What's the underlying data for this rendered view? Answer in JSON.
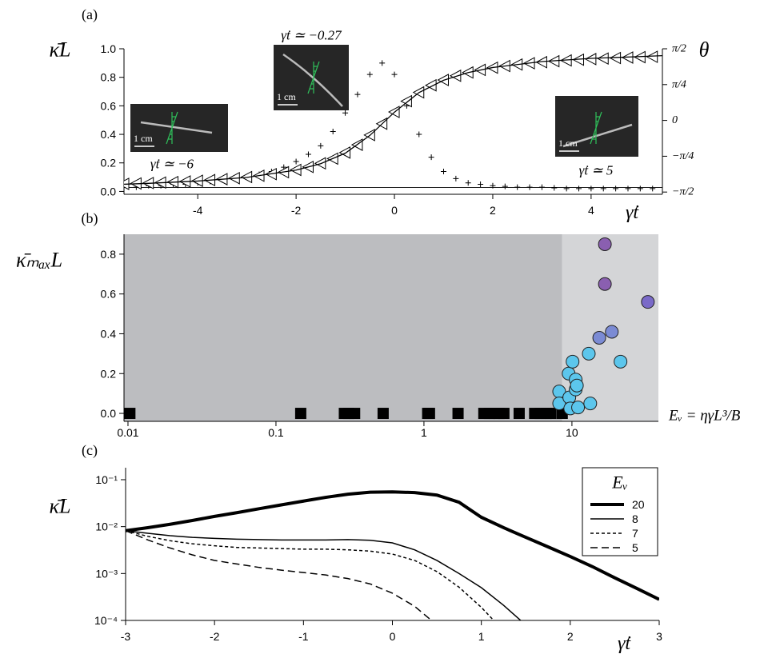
{
  "chart_data": [
    {
      "type": "scatter",
      "panel_label": "(a)",
      "ylabel": "κ̄L",
      "y2label": "θ",
      "xlabel": "γ̇t",
      "baseline": true,
      "xlim": [
        -5.5,
        5.45
      ],
      "xticks": [
        -4,
        -2,
        0,
        2,
        4
      ],
      "ylim": [
        -0.02,
        1.0
      ],
      "yticks": [
        {
          "value": 0,
          "label": "0.0"
        },
        0.2,
        0.4,
        0.6,
        0.8,
        {
          "value": 1,
          "label": "1.0"
        }
      ],
      "y2lim": [
        -1.62,
        1.5708
      ],
      "y2ticks": [
        {
          "value": -1.5708,
          "label": "−π/2"
        },
        {
          "value": -0.7854,
          "label": "−π/4"
        },
        0,
        {
          "value": 0.7854,
          "label": "π/4"
        },
        {
          "value": 1.5708,
          "label": "π/2"
        }
      ],
      "x": [
        -5.5,
        -5.25,
        -5,
        -4.75,
        -4.5,
        -4.25,
        -4,
        -3.75,
        -3.5,
        -3.25,
        -3,
        -2.75,
        -2.5,
        -2.25,
        -2,
        -1.75,
        -1.5,
        -1.25,
        -1,
        -0.75,
        -0.5,
        -0.25,
        0,
        0.25,
        0.5,
        0.75,
        1,
        1.25,
        1.5,
        1.75,
        2,
        2.25,
        2.5,
        2.75,
        3,
        3.25,
        3.5,
        3.75,
        4,
        4.25,
        4.5,
        4.75,
        5,
        5.25
      ],
      "series": [
        {
          "marker": "plus",
          "color": "#000000",
          "values": [
            0.03,
            0.03,
            0.04,
            0.04,
            0.05,
            0.05,
            0.06,
            0.07,
            0.08,
            0.09,
            0.1,
            0.12,
            0.14,
            0.17,
            0.21,
            0.26,
            0.32,
            0.42,
            0.55,
            0.68,
            0.82,
            0.9,
            0.82,
            0.6,
            0.4,
            0.24,
            0.14,
            0.09,
            0.06,
            0.05,
            0.04,
            0.035,
            0.03,
            0.03,
            0.03,
            0.025,
            0.02,
            0.02,
            0.02,
            0.02,
            0.02,
            0.02,
            0.02,
            0.02
          ]
        },
        {
          "marker": "triangle",
          "color": "#000000",
          "axis": "y2",
          "values": [
            -1.392,
            -1.383,
            -1.374,
            -1.363,
            -1.352,
            -1.339,
            -1.324,
            -1.308,
            -1.289,
            -1.267,
            -1.242,
            -1.213,
            -1.178,
            -1.136,
            -1.085,
            -1.021,
            -0.941,
            -0.839,
            -0.706,
            -0.535,
            -0.321,
            -0.073,
            0.185,
            0.421,
            0.615,
            0.769,
            0.887,
            0.979,
            1.051,
            1.108,
            1.155,
            1.193,
            1.226,
            1.254,
            1.277,
            1.298,
            1.315,
            1.331,
            1.345,
            1.357,
            1.368,
            1.378,
            1.387,
            1.395
          ]
        },
        {
          "marker": "none",
          "line": true,
          "color": "#000000",
          "axis": "y2",
          "x": [
            -5.5,
            -5,
            -4,
            -3,
            -2,
            -1.5,
            -1,
            -0.5,
            0,
            0.5,
            1,
            1.5,
            2,
            3,
            4,
            5,
            5.45
          ],
          "values": [
            -1.4,
            -1.38,
            -1.33,
            -1.25,
            -1.09,
            -0.95,
            -0.72,
            -0.33,
            0.18,
            0.61,
            0.88,
            1.05,
            1.16,
            1.29,
            1.36,
            1.4,
            1.42
          ]
        }
      ],
      "insets": [
        {
          "annotation": "γ̇t ≃ −6",
          "scale": "1 cm"
        },
        {
          "annotation": "γ̇t ≃ −0.27",
          "scale": "1 cm"
        },
        {
          "annotation": "γ̇t ≃ 5",
          "scale": "1 cm"
        }
      ]
    },
    {
      "type": "scatter",
      "panel_label": "(b)",
      "ylabel": "κ̄ₘₐₓL",
      "xlabel": "Eᵥ = ηγ̇L³/B",
      "xscale": "log",
      "xlim": [
        0.0094,
        38.4
      ],
      "xticks": [
        0.01,
        0.1,
        1,
        10
      ],
      "ylim": [
        -0.04,
        0.9
      ],
      "yticks": [
        {
          "value": 0,
          "label": "0.0"
        },
        0.2,
        0.4,
        0.6,
        0.8
      ],
      "regions": [
        {
          "from": 0.0094,
          "to": 8.6,
          "color": "#bcbdc0"
        },
        {
          "from": 8.6,
          "to": 38.4,
          "color": "#d4d5d7"
        }
      ],
      "series": [
        {
          "marker": "square",
          "color": "#000000",
          "x": [
            0.0103,
            0.147,
            0.29,
            0.31,
            0.34,
            0.53,
            1.06,
            1.09,
            1.7,
            2.54,
            2.77,
            2.99,
            3.22,
            3.47,
            4.4,
            5.6,
            6.1,
            6.7,
            7.2,
            8.6
          ],
          "values": [
            0,
            0,
            0,
            0,
            0,
            0,
            0,
            0,
            0,
            0,
            0,
            0,
            0,
            0,
            0,
            0,
            0,
            0,
            0,
            0
          ]
        },
        {
          "marker": "circle",
          "x": [
            8.2,
            8.2,
            9.5,
            9.6,
            9.75,
            10.1,
            10.6,
            10.6,
            10.8,
            11.0,
            13.0,
            13.3,
            15.3,
            16.7,
            16.7,
            18.6,
            21.3,
            32.6
          ],
          "values": [
            0.11,
            0.05,
            0.2,
            0.08,
            0.025,
            0.26,
            0.17,
            0.12,
            0.14,
            0.03,
            0.3,
            0.05,
            0.38,
            0.85,
            0.65,
            0.41,
            0.26,
            0.56
          ],
          "colors": [
            "#5cc6ec",
            "#5cc6ec",
            "#5cc6ec",
            "#5cc6ec",
            "#5cc6ec",
            "#5cc6ec",
            "#5cc6ec",
            "#5cc6ec",
            "#5cc6ec",
            "#5cc6ec",
            "#5cc6ec",
            "#5cc6ec",
            "#7b8bd4",
            "#8a5fb0",
            "#8a5fb0",
            "#7b8bd4",
            "#5cc6ec",
            "#7a6ac8"
          ]
        }
      ]
    },
    {
      "type": "line",
      "panel_label": "(c)",
      "ylabel": "κ̄L",
      "xlabel": "γ̇t",
      "yscale": "log",
      "xlim": [
        -3,
        3
      ],
      "xticks": [
        -3,
        -2,
        -1,
        0,
        1,
        2,
        3
      ],
      "ylim": [
        0.0001,
        0.18
      ],
      "yticks": [
        {
          "value": 0.1,
          "label": "10⁻¹"
        },
        {
          "value": 0.01,
          "label": "10⁻²"
        },
        {
          "value": 0.001,
          "label": "10⁻³"
        },
        {
          "value": 0.0001,
          "label": "10⁻⁴"
        }
      ],
      "legend_title": "Eᵥ",
      "legend": "upper right",
      "x": [
        -3,
        -2.75,
        -2.5,
        -2.25,
        -2,
        -1.75,
        -1.5,
        -1.25,
        -1,
        -0.75,
        -0.5,
        -0.25,
        0,
        0.25,
        0.5,
        0.75,
        1,
        1.25,
        1.5,
        1.75,
        2,
        2.25,
        2.5,
        2.75,
        3
      ],
      "series": [
        {
          "name": "20",
          "color": "#000000",
          "width": 4,
          "dash": "solid",
          "values": [
            0.0082,
            0.0095,
            0.0112,
            0.0135,
            0.0165,
            0.0198,
            0.024,
            0.029,
            0.035,
            0.042,
            0.049,
            0.054,
            0.055,
            0.053,
            0.047,
            0.033,
            0.0158,
            0.0095,
            0.0059,
            0.0037,
            0.0023,
            0.0014,
            0.00081,
            0.00048,
            0.00028
          ]
        },
        {
          "name": "8",
          "color": "#000000",
          "width": 1.5,
          "dash": "solid",
          "values": [
            0.0082,
            0.0072,
            0.0064,
            0.0059,
            0.0056,
            0.0054,
            0.0053,
            0.0052,
            0.0052,
            0.0052,
            0.0053,
            0.0051,
            0.0045,
            0.0032,
            0.0019,
            0.001,
            0.0005,
            0.00021,
            8e-05,
            null,
            null,
            null,
            null,
            null,
            null
          ]
        },
        {
          "name": "7",
          "color": "#000000",
          "width": 1.5,
          "dash": "short",
          "values": [
            0.0082,
            0.0062,
            0.005,
            0.0043,
            0.0039,
            0.0036,
            0.0035,
            0.0034,
            0.0033,
            0.0033,
            0.0032,
            0.003,
            0.0026,
            0.0019,
            0.0011,
            0.00051,
            0.00019,
            6e-05,
            null,
            null,
            null,
            null,
            null,
            null,
            null
          ]
        },
        {
          "name": "5",
          "color": "#000000",
          "width": 1.5,
          "dash": "long",
          "values": [
            0.0082,
            0.0052,
            0.0035,
            0.0025,
            0.0019,
            0.0016,
            0.00135,
            0.00118,
            0.00105,
            0.00093,
            0.00078,
            0.0006,
            0.00038,
            0.0002,
            8e-05,
            null,
            null,
            null,
            null,
            null,
            null,
            null,
            null,
            null,
            null
          ]
        }
      ]
    }
  ]
}
